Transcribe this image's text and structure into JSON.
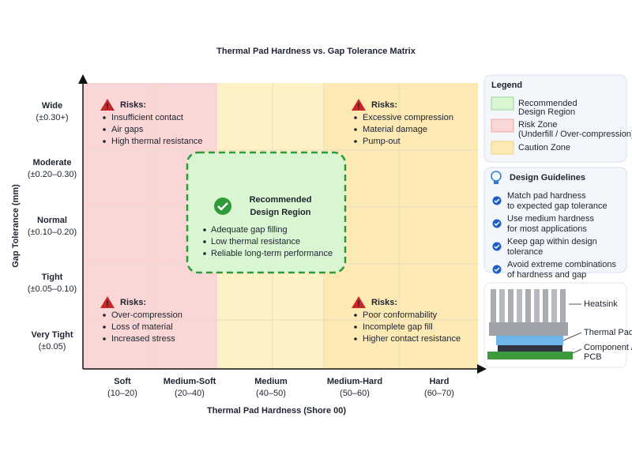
{
  "title": "Thermal Pad Hardness vs. Gap Tolerance Matrix",
  "y_axis": {
    "label": "Gap Tolerance (mm)",
    "ticks": [
      {
        "name": "Wide",
        "range": "(±0.30+)"
      },
      {
        "name": "Moderate",
        "range": "(±0.20–0.30)"
      },
      {
        "name": "Normal",
        "range": "(±0.10–0.20)"
      },
      {
        "name": "Tight",
        "range": "(±0.05–0.10)"
      },
      {
        "name": "Very Tight",
        "range": "(±0.05)"
      }
    ]
  },
  "x_axis": {
    "label": "Thermal Pad Hardness (Shore 00)",
    "ticks": [
      {
        "name": "Soft",
        "range": "(10–20)"
      },
      {
        "name": "Medium-Soft",
        "range": "(20–40)"
      },
      {
        "name": "Medium",
        "range": "(40–50)"
      },
      {
        "name": "Medium-Hard",
        "range": "(50–60)"
      },
      {
        "name": "Hard",
        "range": "(60–70)"
      }
    ]
  },
  "risks": [
    {
      "heading": "Risks:",
      "items": [
        "Insufficient contact",
        "Air gaps",
        "High thermal resistance"
      ]
    },
    {
      "heading": "Risks:",
      "items": [
        "Excessive compression",
        "Material damage",
        "Pump-out"
      ]
    },
    {
      "heading": "Risks:",
      "items": [
        "Over-compression",
        "Loss of material",
        "Increased stress"
      ]
    },
    {
      "heading": "Risks:",
      "items": [
        "Poor conformability",
        "Incomplete gap fill",
        "Higher contact resistance"
      ]
    }
  ],
  "recommended": {
    "title": [
      "Recommended",
      "Design Region"
    ],
    "items": [
      "Adequate gap filling",
      "Low thermal resistance",
      "Reliable long-term performance"
    ]
  },
  "legend": {
    "title": "Legend",
    "items": [
      {
        "lines": [
          "Recommended",
          "Design Region"
        ]
      },
      {
        "lines": [
          "Risk Zone",
          "(Underfill / Over-compression)"
        ]
      },
      {
        "lines": [
          "Caution Zone"
        ]
      }
    ]
  },
  "guidelines": {
    "title": "Design Guidelines",
    "items": [
      [
        "Match pad hardness",
        "to expected gap tolerance"
      ],
      [
        "Use medium hardness",
        "for most applications"
      ],
      [
        "Keep gap within design",
        "tolerance"
      ],
      [
        "Avoid extreme combinations",
        "of hardness and gap"
      ]
    ]
  },
  "illustration": {
    "labels": [
      [
        "Heatsink"
      ],
      [
        "Thermal Pad"
      ],
      [
        "Component /",
        "PCB"
      ]
    ]
  }
}
